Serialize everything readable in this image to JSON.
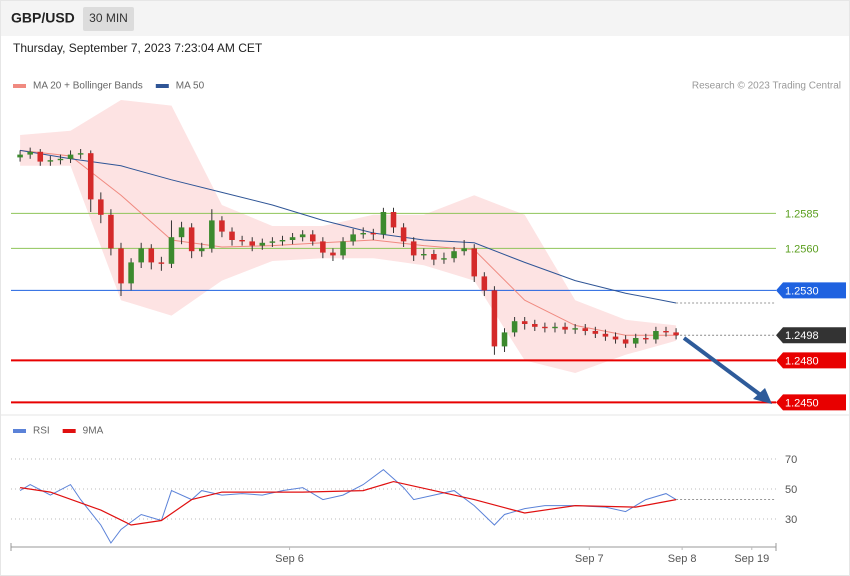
{
  "header": {
    "symbol": "GBP/USD",
    "interval": "30 MIN",
    "timestamp": "Thursday, September 7, 2023 7:23:04 AM CET"
  },
  "chart_data": [
    {
      "type": "candlestick",
      "credit": "Research © 2023 Trading Central",
      "up_color": "#3c8a2e",
      "down_color": "#d42a2a",
      "xlim": [
        -0.9,
        74.9
      ],
      "ylim": [
        1.2441,
        1.2666
      ],
      "candles": [
        [
          1.2625,
          1.263,
          1.2622,
          1.2627
        ],
        [
          1.2627,
          1.2632,
          1.2624,
          1.2629
        ],
        [
          1.2629,
          1.2631,
          1.2619,
          1.2622
        ],
        [
          1.2622,
          1.2626,
          1.2619,
          1.2623
        ],
        [
          1.2623,
          1.2627,
          1.262,
          1.2624
        ],
        [
          1.2624,
          1.263,
          1.2621,
          1.2627
        ],
        [
          1.2627,
          1.2631,
          1.2624,
          1.2628
        ],
        [
          1.2628,
          1.263,
          1.2586,
          1.2595
        ],
        [
          1.2595,
          1.26,
          1.2578,
          1.2584
        ],
        [
          1.2584,
          1.2588,
          1.2555,
          1.256
        ],
        [
          1.256,
          1.2564,
          1.2526,
          1.2535
        ],
        [
          1.2535,
          1.2553,
          1.253,
          1.255
        ],
        [
          1.255,
          1.2564,
          1.2546,
          1.256
        ],
        [
          1.256,
          1.2563,
          1.2545,
          1.255
        ],
        [
          1.255,
          1.2554,
          1.2544,
          1.2549
        ],
        [
          1.2549,
          1.258,
          1.2546,
          1.2568
        ],
        [
          1.2568,
          1.2579,
          1.2563,
          1.2575
        ],
        [
          1.2575,
          1.2578,
          1.2553,
          1.2558
        ],
        [
          1.2558,
          1.2564,
          1.2554,
          1.256
        ],
        [
          1.256,
          1.2588,
          1.2557,
          1.258
        ],
        [
          1.258,
          1.2583,
          1.2568,
          1.2572
        ],
        [
          1.2572,
          1.2575,
          1.2562,
          1.2566
        ],
        [
          1.2566,
          1.2569,
          1.2562,
          1.2565
        ],
        [
          1.2565,
          1.2568,
          1.2558,
          1.2562
        ],
        [
          1.2562,
          1.2567,
          1.2559,
          1.2564
        ],
        [
          1.2564,
          1.2568,
          1.2561,
          1.2565
        ],
        [
          1.2565,
          1.2569,
          1.2562,
          1.2566
        ],
        [
          1.2566,
          1.2571,
          1.2563,
          1.2568
        ],
        [
          1.2568,
          1.2573,
          1.2565,
          1.257
        ],
        [
          1.257,
          1.2573,
          1.2562,
          1.2565
        ],
        [
          1.2565,
          1.2568,
          1.2553,
          1.2557
        ],
        [
          1.2557,
          1.256,
          1.2551,
          1.2555
        ],
        [
          1.2555,
          1.2568,
          1.2552,
          1.2565
        ],
        [
          1.2565,
          1.2574,
          1.2562,
          1.257
        ],
        [
          1.257,
          1.2575,
          1.2567,
          1.2571
        ],
        [
          1.2571,
          1.2574,
          1.2566,
          1.257
        ],
        [
          1.257,
          1.2589,
          1.2567,
          1.2586
        ],
        [
          1.2586,
          1.2589,
          1.2571,
          1.2575
        ],
        [
          1.2575,
          1.2578,
          1.2561,
          1.2565
        ],
        [
          1.2565,
          1.2568,
          1.2551,
          1.2555
        ],
        [
          1.2555,
          1.256,
          1.2552,
          1.2556
        ],
        [
          1.2556,
          1.2559,
          1.2548,
          1.2552
        ],
        [
          1.2552,
          1.2557,
          1.2549,
          1.2553
        ],
        [
          1.2553,
          1.2561,
          1.255,
          1.2558
        ],
        [
          1.2558,
          1.2566,
          1.2555,
          1.256
        ],
        [
          1.256,
          1.2563,
          1.2536,
          1.254
        ],
        [
          1.254,
          1.2543,
          1.2526,
          1.253
        ],
        [
          1.253,
          1.2533,
          1.2484,
          1.249
        ],
        [
          1.249,
          1.2503,
          1.2486,
          1.25
        ],
        [
          1.25,
          1.2511,
          1.2497,
          1.2508
        ],
        [
          1.2508,
          1.2511,
          1.2502,
          1.2506
        ],
        [
          1.2506,
          1.2509,
          1.2501,
          1.2504
        ],
        [
          1.2504,
          1.2507,
          1.25,
          1.2503
        ],
        [
          1.2503,
          1.2507,
          1.25,
          1.2504
        ],
        [
          1.2504,
          1.2507,
          1.2499,
          1.2502
        ],
        [
          1.2502,
          1.2506,
          1.2499,
          1.2503
        ],
        [
          1.2503,
          1.2506,
          1.2498,
          1.2501
        ],
        [
          1.2501,
          1.2504,
          1.2496,
          1.2499
        ],
        [
          1.2499,
          1.2502,
          1.2494,
          1.2497
        ],
        [
          1.2497,
          1.25,
          1.2492,
          1.2495
        ],
        [
          1.2495,
          1.2498,
          1.2489,
          1.2492
        ],
        [
          1.2492,
          1.2499,
          1.2489,
          1.2496
        ],
        [
          1.2496,
          1.2499,
          1.2492,
          1.2495
        ],
        [
          1.2495,
          1.2504,
          1.2492,
          1.2501
        ],
        [
          1.2501,
          1.2504,
          1.2497,
          1.25
        ],
        [
          1.25,
          1.2503,
          1.2495,
          1.2498
        ]
      ],
      "series": [
        {
          "name": "MA 20 + Bollinger Bands",
          "color": "#f08a80",
          "band_color": "#fde3e3",
          "x": [
            0,
            5,
            10,
            15,
            20,
            25,
            30,
            35,
            40,
            45,
            50,
            55,
            60,
            65
          ],
          "values": [
            1.263,
            1.2626,
            1.2598,
            1.2566,
            1.2561,
            1.2562,
            1.2564,
            1.2566,
            1.2562,
            1.2559,
            1.2523,
            1.2505,
            1.2498,
            1.2498
          ],
          "upper": [
            1.2641,
            1.2644,
            1.2666,
            1.2662,
            1.2591,
            1.2576,
            1.2576,
            1.2584,
            1.2584,
            1.2598,
            1.2584,
            1.2523,
            1.2509,
            1.2505
          ],
          "lower": [
            1.2619,
            1.2619,
            1.2523,
            1.2512,
            1.2537,
            1.2551,
            1.2553,
            1.2553,
            1.2548,
            1.2537,
            1.248,
            1.2471,
            1.2484,
            1.2494
          ]
        },
        {
          "name": "MA 50",
          "color": "#2f5596",
          "x": [
            0,
            5,
            10,
            15,
            20,
            25,
            30,
            35,
            40,
            45,
            50,
            55,
            60,
            65
          ],
          "values": [
            1.263,
            1.2624,
            1.2619,
            1.2609,
            1.26,
            1.2591,
            1.258,
            1.2571,
            1.2566,
            1.2564,
            1.255,
            1.2537,
            1.2528,
            1.2521
          ]
        }
      ],
      "levels": [
        {
          "value": 1.2585,
          "label": "1.2585",
          "color": "#8fc45a",
          "style": "text",
          "line": "solid"
        },
        {
          "value": 1.256,
          "label": "1.2560",
          "color": "#8fc45a",
          "style": "text",
          "line": "solid"
        },
        {
          "value": 1.253,
          "label": "1.2530",
          "color": "#1f62e0",
          "style": "box",
          "line": "solid"
        },
        {
          "value": 1.2498,
          "label": "1.2498",
          "color": "#333333",
          "style": "box",
          "line": "dotted"
        },
        {
          "value": 1.248,
          "label": "1.2480",
          "color": "#e80000",
          "style": "box",
          "line": "solid"
        },
        {
          "value": 1.245,
          "label": "1.2450",
          "color": "#e80000",
          "style": "box",
          "line": "solid"
        }
      ],
      "xticks": [
        {
          "value": 26.7,
          "label": "Sep 6"
        },
        {
          "value": 56.4,
          "label": "Sep 7"
        },
        {
          "value": 65.6,
          "label": "Sep 8"
        },
        {
          "value": 72.5,
          "label": "Sep 19"
        }
      ]
    },
    {
      "type": "line",
      "xlim": [
        -0.9,
        74.9
      ],
      "ylim": [
        12.7,
        82.7
      ],
      "yticks": [
        70,
        50,
        30
      ],
      "grid": true,
      "series": [
        {
          "name": "RSI",
          "color": "#5b82d8",
          "x": [
            0,
            1,
            3,
            5,
            6,
            8,
            9,
            10,
            12,
            14,
            15,
            17,
            18,
            20,
            22,
            24,
            26,
            28,
            30,
            32,
            34,
            36,
            38,
            39,
            41,
            43,
            45,
            47,
            48,
            50,
            52,
            55,
            58,
            60,
            62,
            64,
            65
          ],
          "values": [
            49,
            53,
            46,
            53,
            43,
            26,
            14,
            23,
            33,
            29,
            49,
            43,
            49,
            46,
            47,
            46,
            49,
            51,
            43,
            46,
            53,
            63,
            51,
            43,
            46,
            49,
            39,
            26,
            33,
            37,
            39,
            39,
            38,
            35,
            43,
            47,
            43
          ]
        },
        {
          "name": "9MA",
          "color": "#e01010",
          "x": [
            0,
            3,
            8,
            11,
            14,
            17,
            20,
            28,
            34,
            37,
            41,
            45,
            50,
            55,
            61,
            65
          ],
          "values": [
            51,
            48,
            36,
            26,
            29,
            43,
            48,
            48,
            49,
            55,
            49,
            43,
            34,
            39,
            38,
            43
          ]
        }
      ]
    }
  ]
}
